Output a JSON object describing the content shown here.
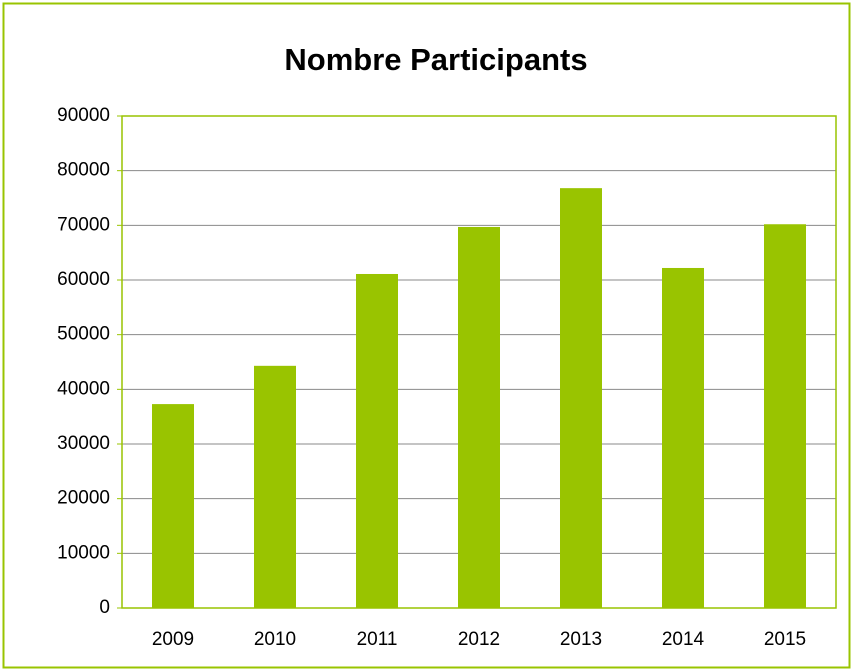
{
  "chart_data": {
    "type": "bar",
    "title": "Nombre Participants",
    "categories": [
      "2009",
      "2010",
      "2011",
      "2012",
      "2013",
      "2014",
      "2015"
    ],
    "values": [
      37300,
      44300,
      61100,
      69700,
      76800,
      62200,
      70200
    ],
    "color": "#99c400",
    "ylim": [
      0,
      90000
    ],
    "yticks": [
      0,
      10000,
      20000,
      30000,
      40000,
      50000,
      60000,
      70000,
      80000,
      90000
    ],
    "grid": true
  }
}
